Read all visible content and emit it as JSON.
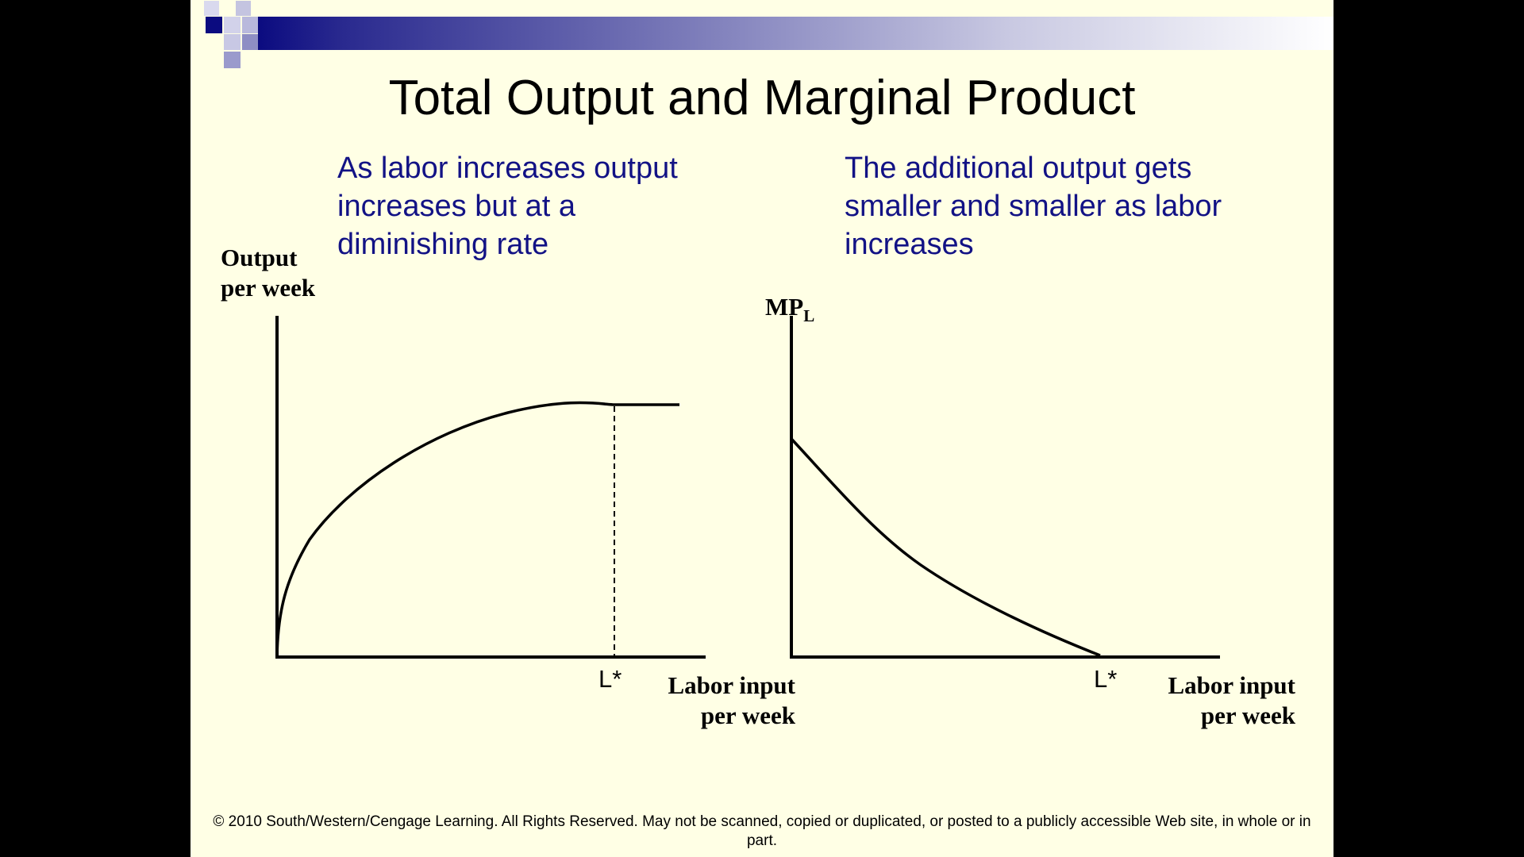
{
  "slide": {
    "title": "Total Output and Marginal Product",
    "footer": "© 2010 South/Western/Cengage Learning. All Rights Reserved. May not be scanned, copied or duplicated, or posted to a publicly accessible Web site, in whole or in part."
  },
  "left_panel": {
    "caption": "As labor increases output\nincreases but at a\ndiminishing rate",
    "y_axis_label": "Output\nper week",
    "x_axis_label": "Labor input\nper week",
    "marker_label": "L*"
  },
  "right_panel": {
    "caption": "The additional output gets\nsmaller and smaller as labor\nincreases",
    "y_axis_label_main": "MP",
    "y_axis_label_sub": "L",
    "x_axis_label": "Labor input\nper week",
    "marker_label": "L*"
  },
  "colors": {
    "background": "#ffffe5",
    "caption_text": "#121285",
    "decor_dark": "#0b0b80",
    "decor_light": "#9a9acc"
  }
}
